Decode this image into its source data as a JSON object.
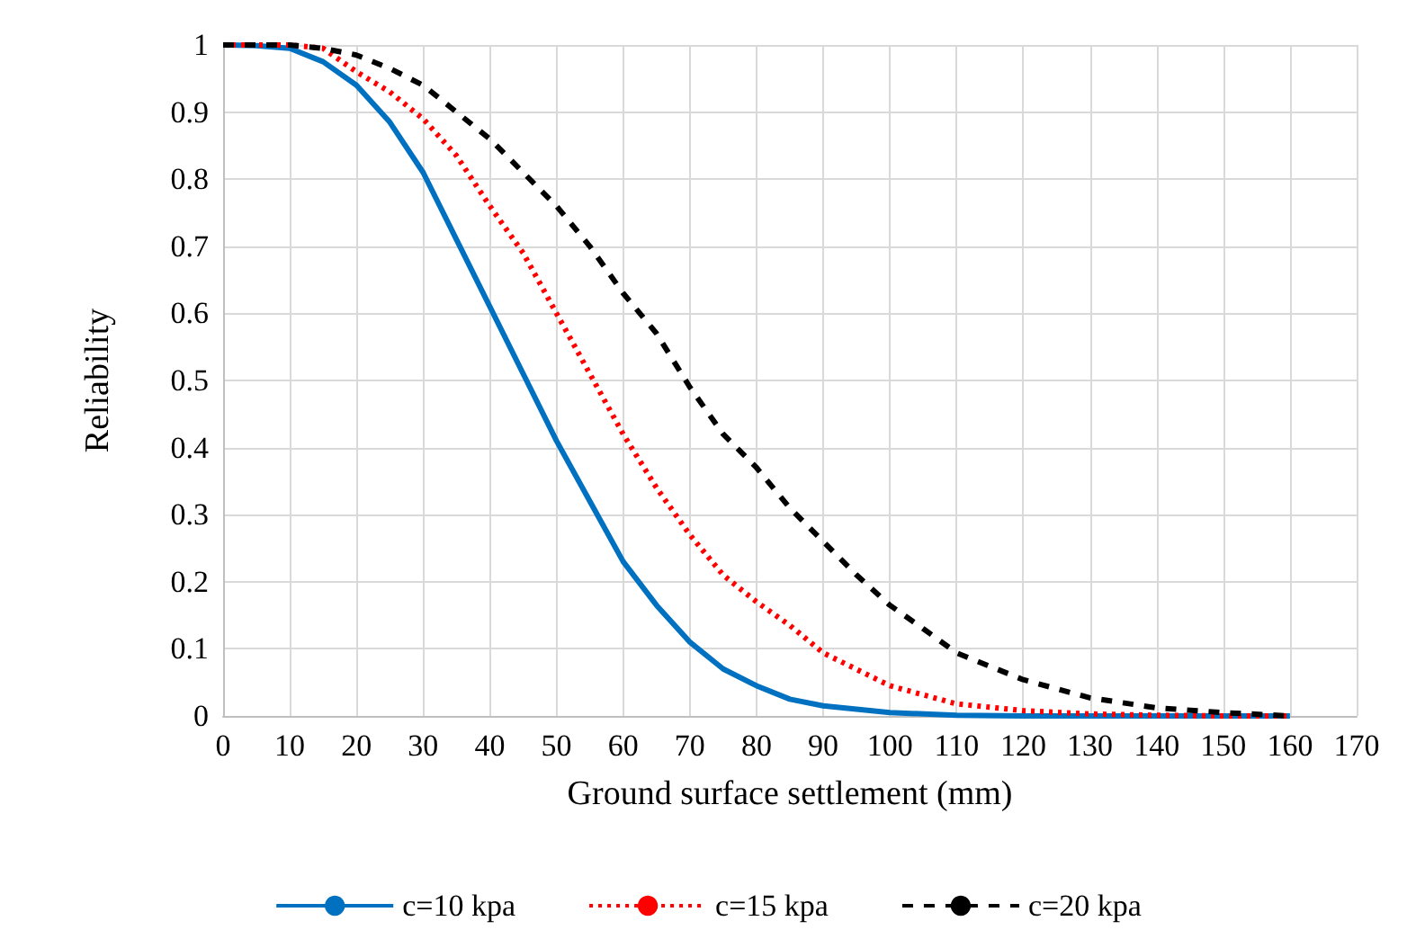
{
  "chart_data": {
    "type": "line",
    "xlabel": "Ground surface settlement (mm)",
    "ylabel": "Reliability",
    "xlim": [
      0,
      170
    ],
    "xticks": [
      0,
      10,
      20,
      30,
      40,
      50,
      60,
      70,
      80,
      90,
      100,
      110,
      120,
      130,
      140,
      150,
      160,
      170
    ],
    "ylim": [
      0,
      1
    ],
    "yticks": [
      0,
      0.1,
      0.2,
      0.3,
      0.4,
      0.5,
      0.6,
      0.7,
      0.8,
      0.9,
      1
    ],
    "grid": true,
    "legend": "bottom",
    "marker": "none",
    "series": [
      {
        "name": "c=10 kpa",
        "color": "#0070c0",
        "line_style": "solid",
        "x": [
          0,
          5,
          10,
          15,
          20,
          25,
          30,
          35,
          40,
          45,
          50,
          55,
          60,
          65,
          70,
          75,
          80,
          85,
          90,
          100,
          110,
          120,
          130,
          140,
          150,
          160
        ],
        "values": [
          1,
          0.999,
          0.995,
          0.975,
          0.94,
          0.885,
          0.81,
          0.71,
          0.61,
          0.51,
          0.41,
          0.32,
          0.23,
          0.165,
          0.11,
          0.07,
          0.045,
          0.025,
          0.015,
          0.005,
          0.001,
          0,
          0,
          0,
          0,
          0
        ]
      },
      {
        "name": "c=15 kpa",
        "color": "#ff0000",
        "line_style": "dotted",
        "x": [
          0,
          10,
          15,
          20,
          25,
          30,
          35,
          40,
          45,
          50,
          55,
          60,
          65,
          70,
          75,
          80,
          85,
          90,
          100,
          110,
          120,
          130,
          140,
          150,
          160
        ],
        "values": [
          1,
          1,
          0.995,
          0.96,
          0.93,
          0.89,
          0.835,
          0.76,
          0.69,
          0.6,
          0.51,
          0.42,
          0.34,
          0.27,
          0.21,
          0.17,
          0.135,
          0.094,
          0.045,
          0.018,
          0.008,
          0.003,
          0.001,
          0,
          0
        ]
      },
      {
        "name": "c=20 kpa",
        "color": "#000000",
        "line_style": "dashed",
        "x": [
          0,
          10,
          15,
          20,
          25,
          30,
          35,
          40,
          45,
          50,
          55,
          60,
          65,
          70,
          75,
          80,
          85,
          90,
          95,
          100,
          105,
          110,
          120,
          130,
          140,
          150,
          160
        ],
        "values": [
          1,
          1,
          0.995,
          0.985,
          0.965,
          0.94,
          0.9,
          0.86,
          0.81,
          0.76,
          0.7,
          0.63,
          0.57,
          0.49,
          0.42,
          0.37,
          0.31,
          0.26,
          0.21,
          0.165,
          0.13,
          0.094,
          0.054,
          0.027,
          0.012,
          0.005,
          0
        ]
      }
    ]
  }
}
